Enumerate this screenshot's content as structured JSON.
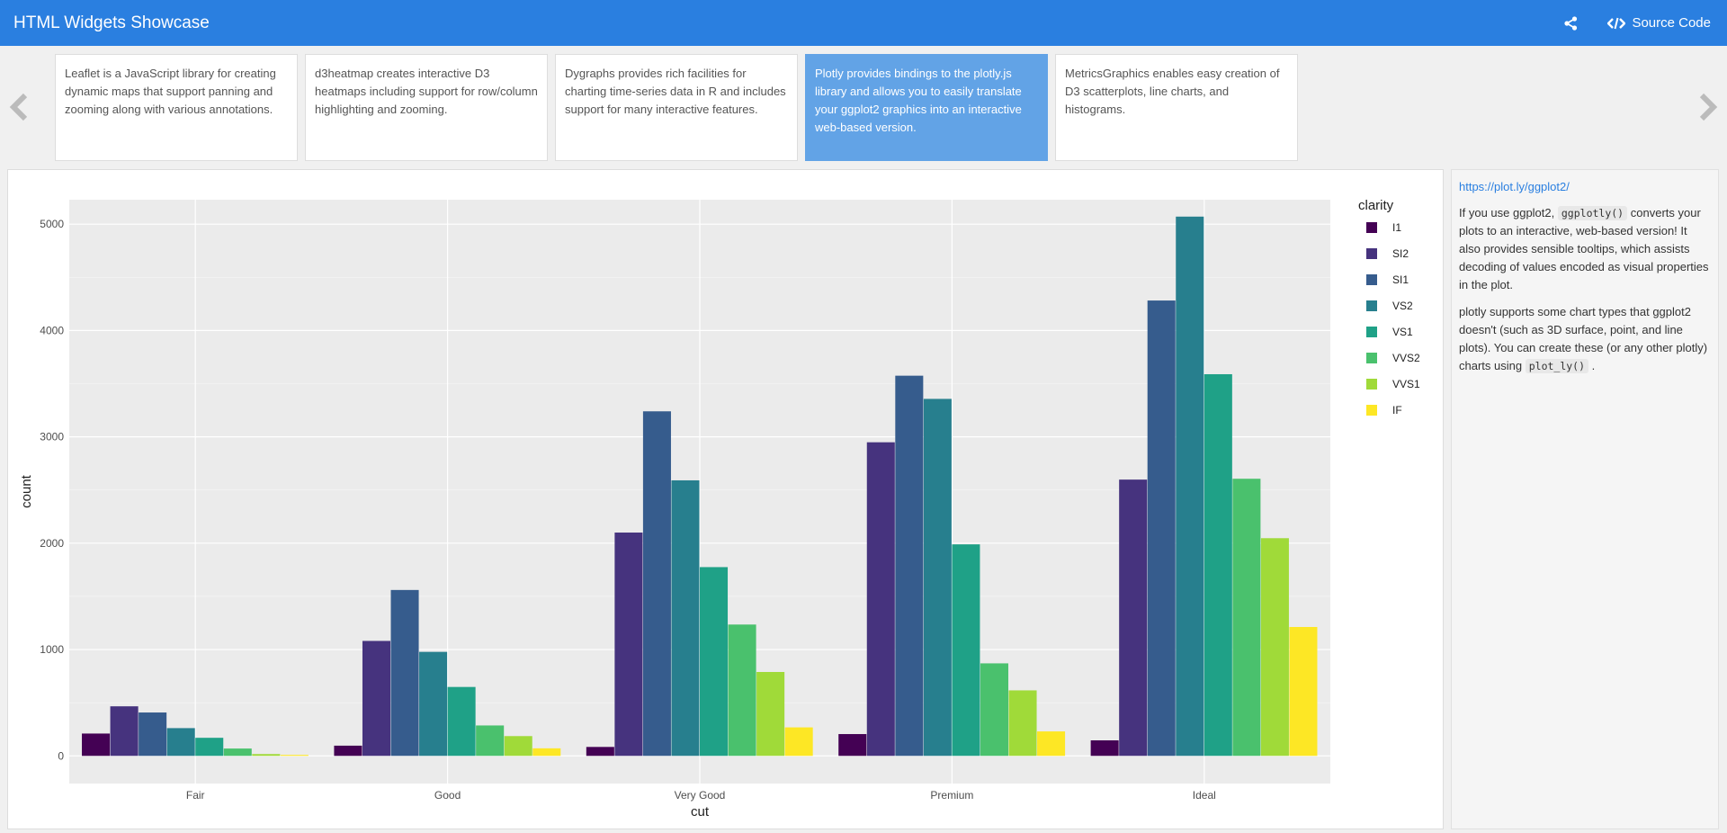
{
  "app": {
    "title": "HTML Widgets Showcase",
    "source_label": "Source Code"
  },
  "carousel": {
    "cards": [
      {
        "text": "Leaflet is a JavaScript library for creating dynamic maps that support panning and zooming along with various annotations.",
        "active": false
      },
      {
        "text": "d3heatmap creates interactive D3 heatmaps including support for row/column highlighting and zooming.",
        "active": false
      },
      {
        "text": "Dygraphs provides rich facilities for charting time-series data in R and includes support for many interactive features.",
        "active": false
      },
      {
        "text": "Plotly provides bindings to the plotly.js library and allows you to easily translate your ggplot2 graphics into an interactive web-based version.",
        "active": true
      },
      {
        "text": "MetricsGraphics enables easy creation of D3 scatterplots, line charts, and histograms.",
        "active": false
      }
    ]
  },
  "sidebar": {
    "link": "https://plot.ly/ggplot2/",
    "p1_a": "If you use ggplot2,",
    "p1_code": "ggplotly()",
    "p1_b": "converts your plots to an interactive, web-based version! It also provides sensible tooltips, which assists decoding of values encoded as visual properties in the plot.",
    "p2_a": "plotly supports some chart types that ggplot2 doesn't (such as 3D surface, point, and line plots). You can create these (or any other plotly) charts using",
    "p2_code": "plot_ly()",
    "p2_b": "."
  },
  "colors": {
    "navbar": "#2a7fe0",
    "active_card": "#62a3e6",
    "panel_bg": "#ebebeb"
  },
  "chart_data": {
    "type": "bar",
    "title": "",
    "xlabel": "cut",
    "ylabel": "count",
    "ylim": [
      -260,
      5230
    ],
    "yticks": [
      0,
      1000,
      2000,
      3000,
      4000,
      5000
    ],
    "grid": true,
    "legend_title": "clarity",
    "legend_position": "right",
    "categories": [
      "Fair",
      "Good",
      "Very Good",
      "Premium",
      "Ideal"
    ],
    "series": [
      {
        "name": "I1",
        "color": "#440154",
        "values": [
          210,
          96,
          84,
          205,
          146
        ]
      },
      {
        "name": "SI2",
        "color": "#46337e",
        "values": [
          466,
          1081,
          2100,
          2949,
          2598
        ]
      },
      {
        "name": "SI1",
        "color": "#365c8d",
        "values": [
          408,
          1560,
          3240,
          3575,
          4282
        ]
      },
      {
        "name": "VS2",
        "color": "#277f8e",
        "values": [
          261,
          978,
          2591,
          3357,
          5071
        ]
      },
      {
        "name": "VS1",
        "color": "#1fa187",
        "values": [
          170,
          648,
          1775,
          1989,
          3589
        ]
      },
      {
        "name": "VVS2",
        "color": "#4ac16d",
        "values": [
          69,
          286,
          1235,
          870,
          2606
        ]
      },
      {
        "name": "VVS1",
        "color": "#a0da39",
        "values": [
          17,
          186,
          789,
          616,
          2047
        ]
      },
      {
        "name": "IF",
        "color": "#fde725",
        "values": [
          9,
          71,
          268,
          230,
          1212
        ]
      }
    ]
  }
}
